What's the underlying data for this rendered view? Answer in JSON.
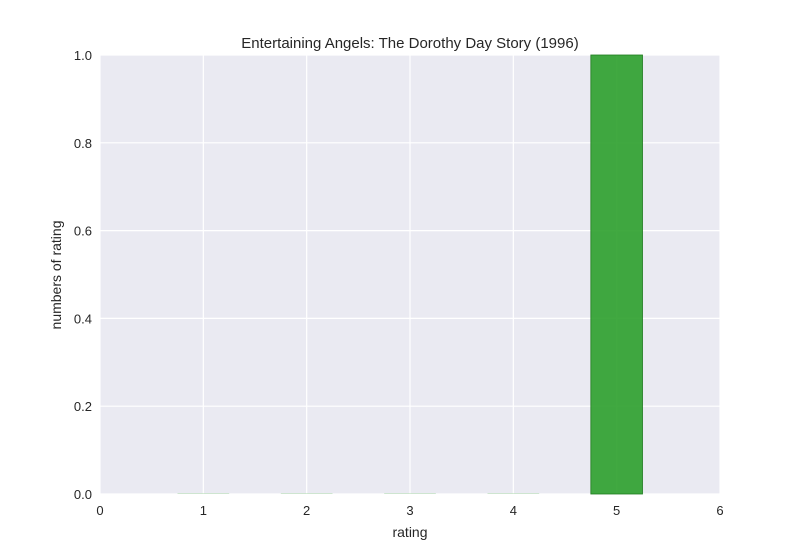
{
  "chart_data": {
    "type": "bar",
    "title": "Entertaining Angels: The Dorothy Day Story (1996)",
    "xlabel": "rating",
    "ylabel": "numbers of rating",
    "x": [
      1,
      2,
      3,
      4,
      5
    ],
    "values": [
      0,
      0,
      0,
      0,
      1
    ],
    "bar_width": 0.5,
    "xlim": [
      0,
      6
    ],
    "ylim": [
      0,
      1.0
    ],
    "xticks": [
      "0",
      "1",
      "2",
      "3",
      "4",
      "5",
      "6"
    ],
    "yticks": [
      "0.0",
      "0.2",
      "0.4",
      "0.6",
      "0.8",
      "1.0"
    ],
    "grid": true,
    "colors": {
      "bar": "#2ca02c",
      "plot_background": "#eaeaf2",
      "grid": "#ffffff"
    }
  }
}
